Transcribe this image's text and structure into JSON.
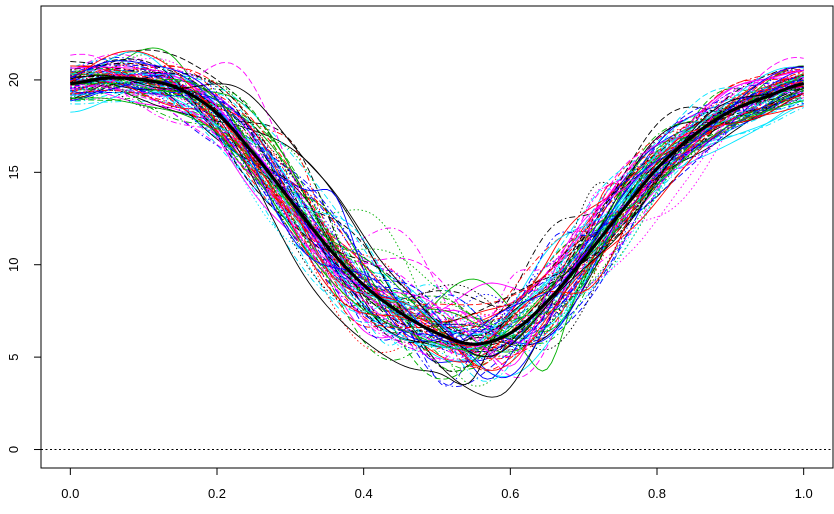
{
  "chart_data": {
    "type": "line",
    "title": "",
    "xlabel": "",
    "ylabel": "",
    "xlim": [
      -0.04,
      1.04
    ],
    "ylim": [
      -1.0,
      24.0
    ],
    "x_ticks": [
      0.0,
      0.2,
      0.4,
      0.6,
      0.8,
      1.0
    ],
    "x_tick_labels": [
      "0.0",
      "0.2",
      "0.4",
      "0.6",
      "0.8",
      "1.0"
    ],
    "y_ticks": [
      0,
      5,
      10,
      15,
      20
    ],
    "y_tick_labels": [
      "0",
      "5",
      "10",
      "15",
      "20"
    ],
    "grid": false,
    "legend": "none",
    "reference_line": {
      "y": 0,
      "style": "dotted",
      "color": "#000000"
    },
    "mean_curve": {
      "color": "#000000",
      "x": [
        0.0,
        0.05,
        0.1,
        0.15,
        0.2,
        0.25,
        0.3,
        0.35,
        0.4,
        0.45,
        0.5,
        0.55,
        0.6,
        0.65,
        0.7,
        0.75,
        0.8,
        0.85,
        0.9,
        0.95,
        1.0
      ],
      "y": [
        19.8,
        20.1,
        20.0,
        19.5,
        18.2,
        16.0,
        13.5,
        11.0,
        8.9,
        7.4,
        6.3,
        5.7,
        6.3,
        8.0,
        10.3,
        12.8,
        15.2,
        17.0,
        18.3,
        19.1,
        19.8
      ]
    },
    "sample_curves": {
      "count": 100,
      "colors": [
        "#000000",
        "#ff0000",
        "#00b000",
        "#0000ff",
        "#00e5ff",
        "#ff00ff"
      ],
      "line_styles": [
        "solid",
        "dashed",
        "dotted",
        "dotdash"
      ],
      "y_min_approx": -0.4,
      "y_max_approx": 23.6
    }
  }
}
